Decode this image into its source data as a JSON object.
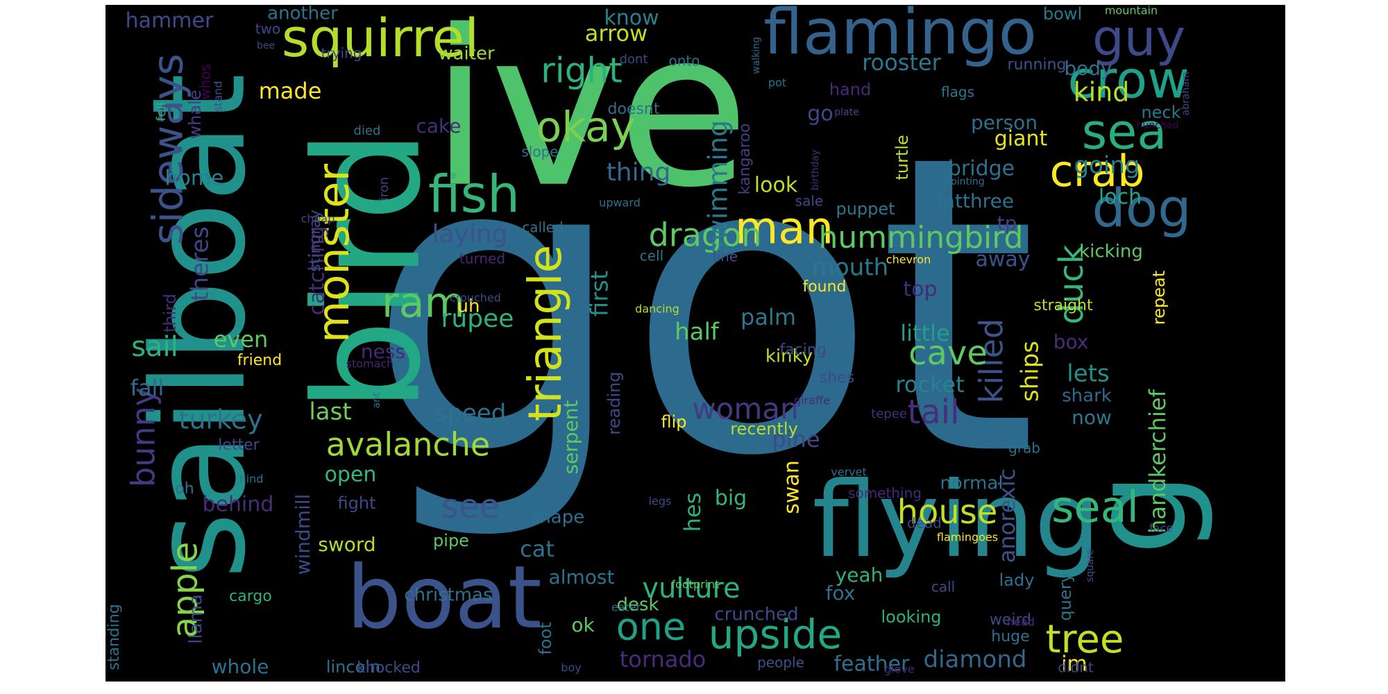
{
  "colors": {
    "background": "#000000",
    "palette": [
      "#fde725",
      "#b5de2b",
      "#6ece58",
      "#35b779",
      "#1f9e89",
      "#26828e",
      "#31688e",
      "#3e4989",
      "#482878",
      "#440154"
    ]
  },
  "words": [
    {
      "t": "got",
      "c": "#2c6b8e"
    },
    {
      "t": "ive",
      "c": "#4ec36b"
    },
    {
      "t": "bird",
      "c": "#22a884"
    },
    {
      "t": "sailboat",
      "c": "#21918c"
    },
    {
      "t": "boat",
      "c": "#3b528b"
    },
    {
      "t": "flying",
      "c": "#25858e"
    },
    {
      "t": "flamingo",
      "c": "#33638d"
    },
    {
      "t": "squirrel",
      "c": "#b5de2b"
    },
    {
      "t": "guy",
      "c": "#3e4989"
    },
    {
      "t": "crow",
      "c": "#1fa088"
    },
    {
      "t": "sea",
      "c": "#29af7f"
    },
    {
      "t": "dog",
      "c": "#31688e"
    },
    {
      "t": "g",
      "c": "#21918c"
    },
    {
      "t": "fish",
      "c": "#35b779"
    },
    {
      "t": "monster",
      "c": "#dde318"
    },
    {
      "t": "crab",
      "c": "#fde725"
    },
    {
      "t": "man",
      "c": "#fde725"
    },
    {
      "t": "okay",
      "c": "#7ad151"
    },
    {
      "t": "right",
      "c": "#2db27d"
    },
    {
      "t": "know",
      "c": "#26828e"
    },
    {
      "t": "sideways",
      "c": "#3b528b"
    },
    {
      "t": "hummingbird",
      "c": "#5ec962"
    },
    {
      "t": "dragon",
      "c": "#5ec962"
    },
    {
      "t": "triangle",
      "c": "#d2e21b"
    },
    {
      "t": "ram",
      "c": "#5ec962"
    },
    {
      "t": "duck",
      "c": "#35b779"
    },
    {
      "t": "killed",
      "c": "#3b528b"
    },
    {
      "t": "seal",
      "c": "#35b779"
    },
    {
      "t": "house",
      "c": "#c2df23"
    },
    {
      "t": "tree",
      "c": "#c2df23"
    },
    {
      "t": "upside",
      "c": "#22a884"
    },
    {
      "t": "one",
      "c": "#1fa088"
    },
    {
      "t": "avalanche",
      "c": "#a0da39"
    },
    {
      "t": "apple",
      "c": "#86d549"
    },
    {
      "t": "bunny",
      "c": "#443983"
    },
    {
      "t": "see",
      "c": "#3b528b"
    },
    {
      "t": "vulture",
      "c": "#2db27d"
    },
    {
      "t": "cave",
      "c": "#5ec962"
    },
    {
      "t": "tail",
      "c": "#472d7b"
    },
    {
      "t": "woman",
      "c": "#443983"
    },
    {
      "t": "swimming",
      "c": "#2a788e"
    },
    {
      "t": "rooster",
      "c": "#2a788e"
    },
    {
      "t": "kind",
      "c": "#b5de2b"
    },
    {
      "t": "hammer",
      "c": "#3e4989"
    },
    {
      "t": "another",
      "c": "#2c728e"
    },
    {
      "t": "arrow",
      "c": "#c2df23"
    },
    {
      "t": "waiter",
      "c": "#a0da39"
    },
    {
      "t": "made",
      "c": "#fde725"
    },
    {
      "t": "cake",
      "c": "#472d7b"
    },
    {
      "t": "sail",
      "c": "#2db27d"
    },
    {
      "t": "turkey",
      "c": "#2c728e"
    },
    {
      "t": "fall",
      "c": "#31688e"
    },
    {
      "t": "speed",
      "c": "#2c728e"
    },
    {
      "t": "last",
      "c": "#6ece58"
    },
    {
      "t": "rupee",
      "c": "#2db27d"
    },
    {
      "t": "first",
      "c": "#218f8d"
    },
    {
      "t": "half",
      "c": "#5ec962"
    },
    {
      "t": "even",
      "c": "#5ec962"
    },
    {
      "t": "home",
      "c": "#26828e"
    },
    {
      "t": "thing",
      "c": "#31688e"
    },
    {
      "t": "look",
      "c": "#c2df23"
    },
    {
      "t": "laying",
      "c": "#3b528b"
    },
    {
      "t": "catching",
      "c": "#472d7b"
    },
    {
      "t": "theres",
      "c": "#3e4989"
    },
    {
      "t": "mouth",
      "c": "#2a788e"
    },
    {
      "t": "palm",
      "c": "#2a788e"
    },
    {
      "t": "little",
      "c": "#1fa088"
    },
    {
      "t": "rocket",
      "c": "#26828e"
    },
    {
      "t": "kinky",
      "c": "#bddf26"
    },
    {
      "t": "pine",
      "c": "#3e4989"
    },
    {
      "t": "recently",
      "c": "#b5de2b"
    },
    {
      "t": "flip",
      "c": "#fde725"
    },
    {
      "t": "ships",
      "c": "#dde318"
    },
    {
      "t": "lets",
      "c": "#21918c"
    },
    {
      "t": "now",
      "c": "#2a788e"
    },
    {
      "t": "shark",
      "c": "#31688e"
    },
    {
      "t": "box",
      "c": "#472d7b"
    },
    {
      "t": "handkerchief",
      "c": "#5ec962"
    },
    {
      "t": "repeat",
      "c": "#fde725"
    },
    {
      "t": "anorexic",
      "c": "#3b528b"
    },
    {
      "t": "tp",
      "c": "#433e85"
    },
    {
      "t": "loch",
      "c": "#20a386"
    },
    {
      "t": "fatthree",
      "c": "#2c728e"
    },
    {
      "t": "going",
      "c": "#26828e"
    },
    {
      "t": "bridge",
      "c": "#2c728e"
    },
    {
      "t": "giant",
      "c": "#e5e419"
    },
    {
      "t": "person",
      "c": "#2c728e"
    },
    {
      "t": "body",
      "c": "#2c728e"
    },
    {
      "t": "bowl",
      "c": "#2a788e"
    },
    {
      "t": "running",
      "c": "#3b528b"
    },
    {
      "t": "mountain",
      "c": "#5ec962"
    },
    {
      "t": "abraham",
      "c": "#3e4989"
    },
    {
      "t": "hunched",
      "c": "#440154"
    },
    {
      "t": "neck",
      "c": "#2a788e"
    },
    {
      "t": "kicking",
      "c": "#5ec962"
    },
    {
      "t": "straight",
      "c": "#bddf26"
    },
    {
      "t": "top",
      "c": "#482878"
    },
    {
      "t": "away",
      "c": "#3b528b"
    },
    {
      "t": "go",
      "c": "#3e4989"
    },
    {
      "t": "hand",
      "c": "#482878"
    },
    {
      "t": "flags",
      "c": "#2a788e"
    },
    {
      "t": "turtle",
      "c": "#bddf26"
    },
    {
      "t": "puppet",
      "c": "#2a788e"
    },
    {
      "t": "line",
      "c": "#3b528b"
    },
    {
      "t": "cell",
      "c": "#2c728e"
    },
    {
      "t": "found",
      "c": "#fde725"
    },
    {
      "t": "shes",
      "c": "#3e4989"
    },
    {
      "t": "tepee",
      "c": "#472d7b"
    },
    {
      "t": "facing",
      "c": "#3e4989"
    },
    {
      "t": "stomach",
      "c": "#482878"
    },
    {
      "t": "ness",
      "c": "#482878"
    },
    {
      "t": "uh",
      "c": "#fde725"
    },
    {
      "t": "friend",
      "c": "#fde725"
    },
    {
      "t": "third",
      "c": "#472d7b"
    },
    {
      "t": "whale",
      "c": "#433e85"
    },
    {
      "t": "whos",
      "c": "#440154"
    },
    {
      "t": "stand",
      "c": "#3b528b"
    },
    {
      "t": "fell",
      "c": "#2db27d"
    },
    {
      "t": "two",
      "c": "#3e4989"
    },
    {
      "t": "bee",
      "c": "#3e4989"
    },
    {
      "t": "trying",
      "c": "#3e4989"
    },
    {
      "t": "dont",
      "c": "#3e4989"
    },
    {
      "t": "onto",
      "c": "#2c728e"
    },
    {
      "t": "walking",
      "c": "#31688e"
    },
    {
      "t": "pot",
      "c": "#2c728e"
    },
    {
      "t": "doesnt",
      "c": "#2c728e"
    },
    {
      "t": "died",
      "c": "#2c728e"
    },
    {
      "t": "slope",
      "c": "#2c728e"
    },
    {
      "t": "stingray",
      "c": "#3e4989"
    },
    {
      "t": "kangaroo",
      "c": "#433e85"
    },
    {
      "t": "iron",
      "c": "#433e85"
    },
    {
      "t": "cheap",
      "c": "#3e4989"
    },
    {
      "t": "called",
      "c": "#2c728e"
    },
    {
      "t": "turned",
      "c": "#482878"
    },
    {
      "t": "crouched",
      "c": "#3e4989"
    },
    {
      "t": "dancing",
      "c": "#b5de2b"
    },
    {
      "t": "chevron",
      "c": "#fde725"
    },
    {
      "t": "plate",
      "c": "#3e4989"
    },
    {
      "t": "birthday",
      "c": "#472d7b"
    },
    {
      "t": "pointing",
      "c": "#2c728e"
    },
    {
      "t": "sale",
      "c": "#3e4989"
    },
    {
      "t": "upward",
      "c": "#2c728e"
    },
    {
      "t": "reading",
      "c": "#3e4989"
    },
    {
      "t": "serpent",
      "c": "#5ec962"
    },
    {
      "t": "open",
      "c": "#35b779"
    },
    {
      "t": "big",
      "c": "#35b779"
    },
    {
      "t": "hes",
      "c": "#29af7f"
    },
    {
      "t": "swan",
      "c": "#fde725"
    },
    {
      "t": "something",
      "c": "#482878"
    },
    {
      "t": "giraffe",
      "c": "#482878"
    },
    {
      "t": "ant",
      "c": "#2c728e"
    },
    {
      "t": "grab",
      "c": "#2c728e"
    },
    {
      "t": "vervet",
      "c": "#2c728e"
    },
    {
      "t": "letter",
      "c": "#3e4989"
    },
    {
      "t": "behind",
      "c": "#472d7b"
    },
    {
      "t": "oh",
      "c": "#2c728e"
    },
    {
      "t": "hind",
      "c": "#2c728e"
    },
    {
      "t": "windmill",
      "c": "#3e4989"
    },
    {
      "t": "fight",
      "c": "#3e4989"
    },
    {
      "t": "legs",
      "c": "#3e4989"
    },
    {
      "t": "shape",
      "c": "#2c728e"
    },
    {
      "t": "cat",
      "c": "#2c728e"
    },
    {
      "t": "almost",
      "c": "#2c728e"
    },
    {
      "t": "sword",
      "c": "#b5de2b"
    },
    {
      "t": "pipe",
      "c": "#5ec962"
    },
    {
      "t": "llama",
      "c": "#3e4989"
    },
    {
      "t": "cargo",
      "c": "#2db27d"
    },
    {
      "t": "standing",
      "c": "#2c728e"
    },
    {
      "t": "christmas",
      "c": "#2c728e"
    },
    {
      "t": "ok",
      "c": "#5ec962"
    },
    {
      "t": "desk",
      "c": "#5ec962"
    },
    {
      "t": "crunched",
      "c": "#3e4989"
    },
    {
      "t": "foot",
      "c": "#2c728e"
    },
    {
      "t": "eater",
      "c": "#2c728e"
    },
    {
      "t": "footprint",
      "c": "#5ec962"
    },
    {
      "t": "whole",
      "c": "#2c728e"
    },
    {
      "t": "lincoln",
      "c": "#2c728e"
    },
    {
      "t": "knocked",
      "c": "#3e4989"
    },
    {
      "t": "boy",
      "c": "#3e4989"
    },
    {
      "t": "tornado",
      "c": "#472d7b"
    },
    {
      "t": "people",
      "c": "#3b528b"
    },
    {
      "t": "feather",
      "c": "#2c728e"
    },
    {
      "t": "glove",
      "c": "#482878"
    },
    {
      "t": "diamond",
      "c": "#31688e"
    },
    {
      "t": "im",
      "c": "#fde725"
    },
    {
      "t": "didnt",
      "c": "#3e4989"
    },
    {
      "t": "huge",
      "c": "#2c728e"
    },
    {
      "t": "looking",
      "c": "#2db27d"
    },
    {
      "t": "weird",
      "c": "#3e4989"
    },
    {
      "t": "head",
      "c": "#482878"
    },
    {
      "t": "call",
      "c": "#3e4989"
    },
    {
      "t": "fox",
      "c": "#2c728e"
    },
    {
      "t": "yeah",
      "c": "#2db27d"
    },
    {
      "t": "lady",
      "c": "#2c728e"
    },
    {
      "t": "dead",
      "c": "#3e4989"
    },
    {
      "t": "query",
      "c": "#2c728e"
    },
    {
      "t": "square",
      "c": "#3b528b"
    },
    {
      "t": "face",
      "c": "#3b528b"
    },
    {
      "t": "flamingoes",
      "c": "#fde725"
    },
    {
      "t": "normal",
      "c": "#2c728e"
    }
  ]
}
